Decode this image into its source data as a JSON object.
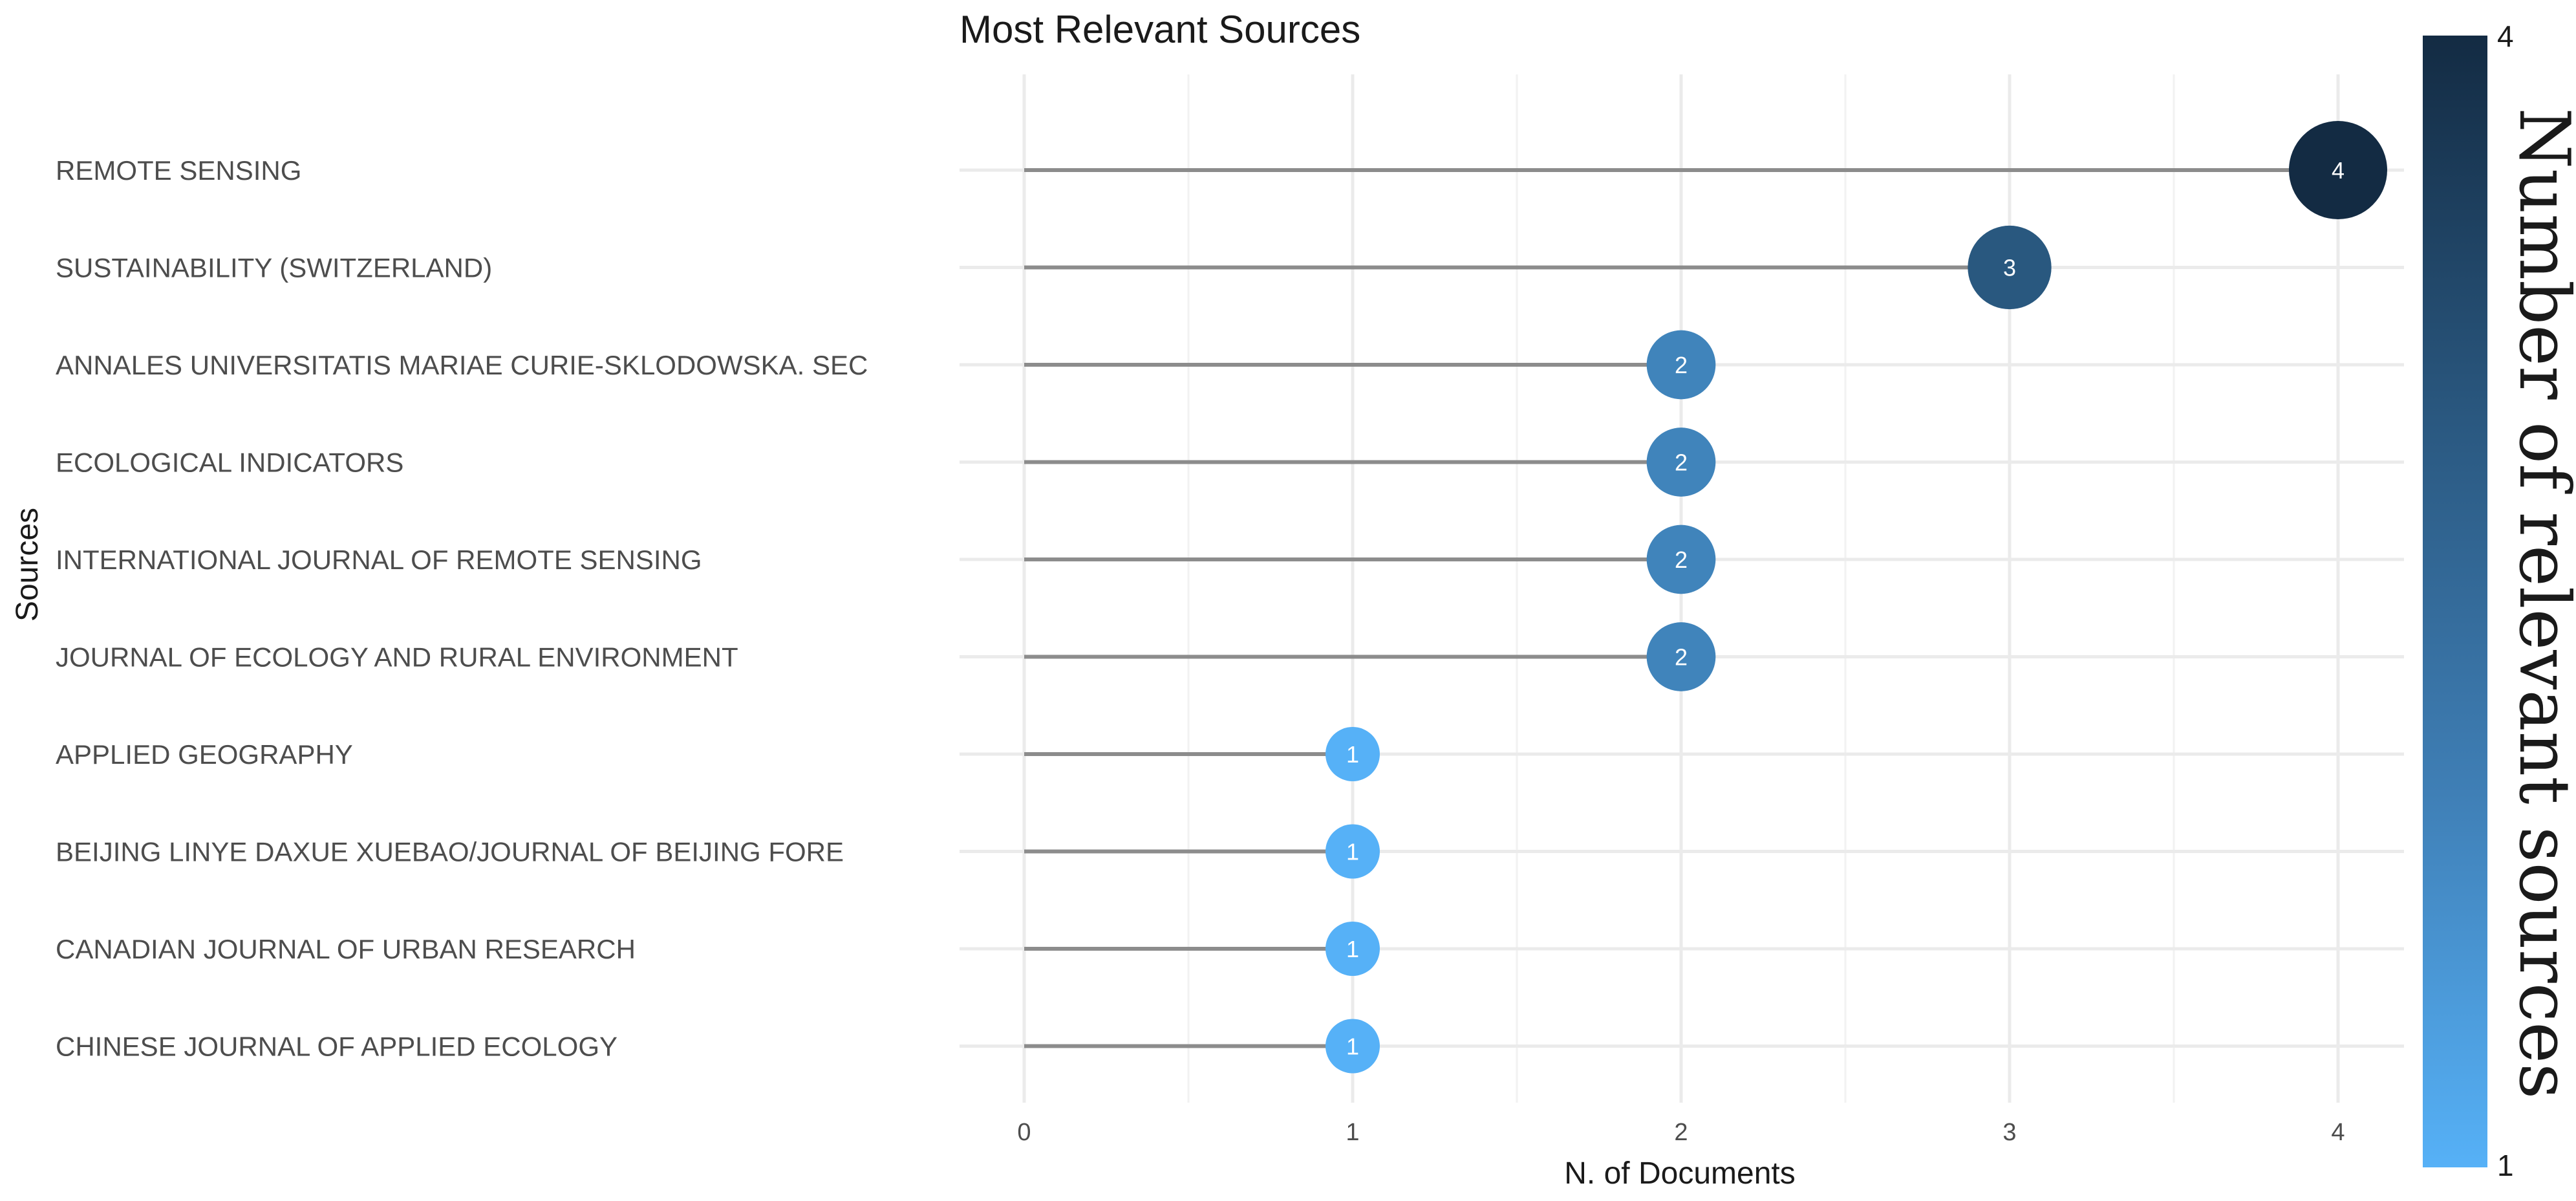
{
  "chart_data": {
    "type": "scatter",
    "subtype": "lollipop",
    "title": "Most Relevant Sources",
    "xlabel": "N. of Documents",
    "ylabel": "Sources",
    "xlim": [
      0,
      4
    ],
    "x_ticks": [
      "0",
      "1",
      "2",
      "3",
      "4"
    ],
    "grid": true,
    "categories": [
      "REMOTE SENSING",
      "SUSTAINABILITY (SWITZERLAND)",
      "ANNALES UNIVERSITATIS MARIAE CURIE-SKLODOWSKA. SEC",
      "ECOLOGICAL INDICATORS",
      "INTERNATIONAL JOURNAL OF REMOTE SENSING",
      "JOURNAL OF ECOLOGY AND RURAL ENVIRONMENT",
      "APPLIED GEOGRAPHY",
      "BEIJING LINYE DAXUE XUEBAO/JOURNAL OF BEIJING FORE",
      "CANADIAN JOURNAL OF URBAN RESEARCH",
      "CHINESE JOURNAL OF APPLIED ECOLOGY"
    ],
    "values": [
      4,
      3,
      2,
      2,
      2,
      2,
      1,
      1,
      1,
      1
    ],
    "point_labels": [
      "4",
      "3",
      "2",
      "2",
      "2",
      "2",
      "1",
      "1",
      "1",
      "1"
    ],
    "legend": {
      "title": "Number of relevant sources",
      "position": "right",
      "min_label": "1",
      "max_label": "4",
      "color_low": "#56B1F7",
      "color_high": "#132B43"
    }
  }
}
